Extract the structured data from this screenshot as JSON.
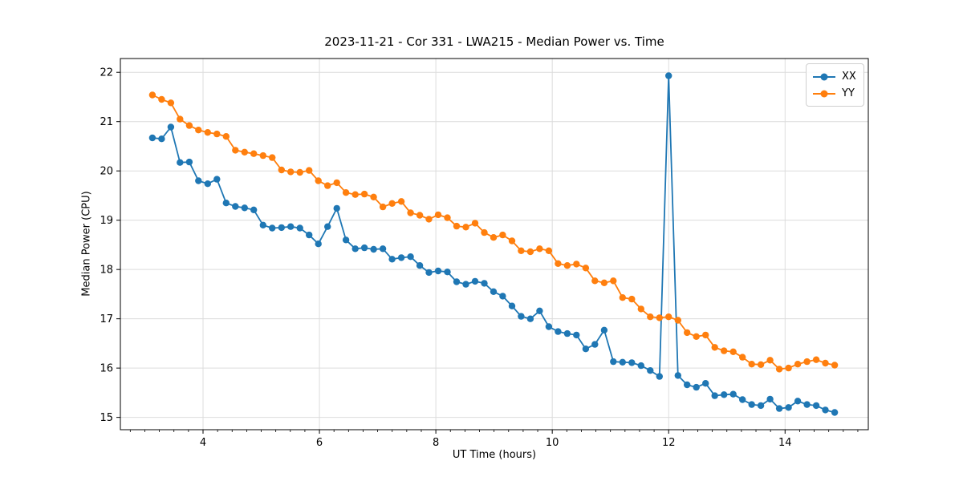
{
  "figure": {
    "background": "#ffffff"
  },
  "chart_data": {
    "type": "line",
    "title": "2023-11-21 - Cor 331 - LWA215 - Median Power vs. Time",
    "xlabel": "UT Time (hours)",
    "ylabel": "Median Power (CPU)",
    "xlim": [
      2.58,
      15.43
    ],
    "ylim": [
      14.75,
      22.28
    ],
    "x_major_ticks": [
      4,
      6,
      8,
      10,
      12,
      14
    ],
    "x_minor_step": 0.25,
    "y_major_ticks": [
      15,
      16,
      17,
      18,
      19,
      20,
      21,
      22
    ],
    "grid": true,
    "grid_color": "#dcdcdc",
    "marker": "o",
    "marker_radius": 4.2,
    "line_width": 1.8,
    "legend": {
      "position": "upper right",
      "entries": [
        {
          "label": "XX",
          "color": "#1f77b4"
        },
        {
          "label": "YY",
          "color": "#ff7f0e"
        }
      ]
    },
    "x": [
      3.13,
      3.288,
      3.447,
      3.605,
      3.764,
      3.922,
      4.08,
      4.239,
      4.397,
      4.556,
      4.714,
      4.872,
      5.031,
      5.189,
      5.348,
      5.506,
      5.664,
      5.823,
      5.981,
      6.14,
      6.298,
      6.456,
      6.615,
      6.773,
      6.932,
      7.09,
      7.248,
      7.407,
      7.565,
      7.724,
      7.882,
      8.04,
      8.199,
      8.357,
      8.516,
      8.674,
      8.832,
      8.991,
      9.149,
      9.308,
      9.466,
      9.624,
      9.783,
      9.941,
      10.1,
      10.258,
      10.416,
      10.575,
      10.733,
      10.892,
      11.05,
      11.208,
      11.367,
      11.525,
      11.684,
      11.842,
      12.0,
      12.159,
      12.317,
      12.476,
      12.634,
      12.792,
      12.951,
      13.109,
      13.268,
      13.426,
      13.584,
      13.743,
      13.901,
      14.06,
      14.218,
      14.376,
      14.535,
      14.693,
      14.852
    ],
    "series": [
      {
        "name": "XX",
        "color": "#1f77b4",
        "values": [
          20.67,
          20.65,
          20.89,
          20.17,
          20.18,
          19.8,
          19.74,
          19.83,
          19.35,
          19.28,
          19.25,
          19.21,
          18.9,
          18.84,
          18.85,
          18.87,
          18.84,
          18.7,
          18.52,
          18.87,
          19.24,
          18.6,
          18.42,
          18.44,
          18.41,
          18.42,
          18.21,
          18.24,
          18.26,
          18.08,
          17.94,
          17.97,
          17.95,
          17.75,
          17.7,
          17.76,
          17.72,
          17.55,
          17.46,
          17.26,
          17.05,
          17.0,
          17.16,
          16.84,
          16.74,
          16.7,
          16.67,
          16.39,
          16.48,
          16.77,
          16.13,
          16.12,
          16.11,
          16.05,
          15.95,
          15.83,
          21.93,
          15.85,
          15.66,
          15.61,
          15.69,
          15.44,
          15.46,
          15.47,
          15.36,
          15.26,
          15.24,
          15.37,
          15.18,
          15.2,
          15.33,
          15.26,
          15.24,
          15.15,
          15.1
        ]
      },
      {
        "name": "YY",
        "color": "#ff7f0e",
        "values": [
          21.54,
          21.45,
          21.38,
          21.05,
          20.92,
          20.83,
          20.78,
          20.75,
          20.7,
          20.42,
          20.38,
          20.35,
          20.31,
          20.27,
          20.02,
          19.98,
          19.97,
          20.01,
          19.8,
          19.7,
          19.76,
          19.56,
          19.52,
          19.53,
          19.47,
          19.27,
          19.34,
          19.38,
          19.15,
          19.1,
          19.02,
          19.11,
          19.05,
          18.88,
          18.86,
          18.94,
          18.75,
          18.65,
          18.7,
          18.58,
          18.38,
          18.36,
          18.42,
          18.38,
          18.12,
          18.08,
          18.11,
          18.03,
          17.77,
          17.73,
          17.77,
          17.43,
          17.4,
          17.2,
          17.04,
          17.02,
          17.04,
          16.97,
          16.72,
          16.64,
          16.67,
          16.42,
          16.35,
          16.33,
          16.22,
          16.08,
          16.07,
          16.16,
          15.98,
          16.0,
          16.08,
          16.13,
          16.17,
          16.1,
          16.06
        ]
      }
    ]
  }
}
